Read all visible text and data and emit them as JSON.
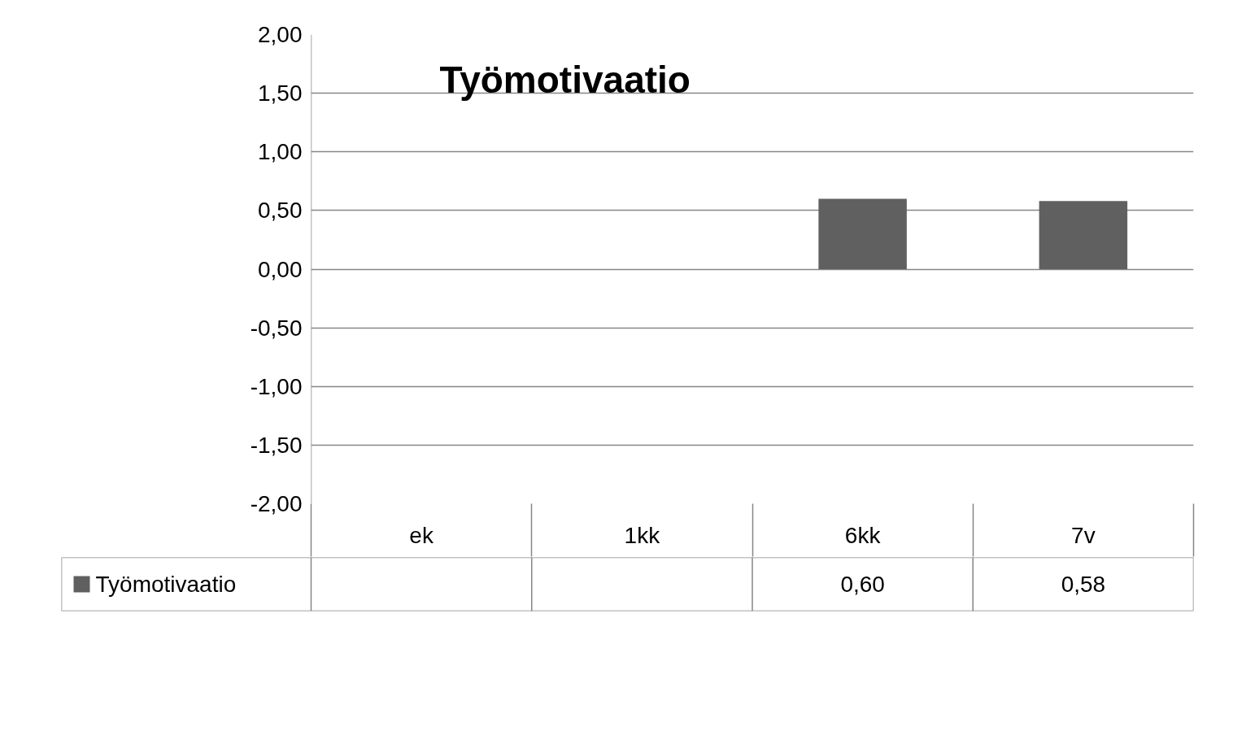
{
  "chart_data": {
    "type": "bar",
    "title": "Työmotivaatio",
    "categories": [
      "ek",
      "1kk",
      "6kk",
      "7v"
    ],
    "series": [
      {
        "name": "Työmotivaatio",
        "color": "#606060",
        "values": [
          null,
          null,
          0.6,
          0.58
        ],
        "value_labels": [
          null,
          null,
          "0,60",
          "0,58"
        ]
      }
    ],
    "ylim": [
      -2,
      2
    ],
    "yticks": [
      {
        "value": -2,
        "label": "-2,00"
      },
      {
        "value": -1.5,
        "label": "-1,50"
      },
      {
        "value": -1,
        "label": "-1,00"
      },
      {
        "value": -0.5,
        "label": "-0,50"
      },
      {
        "value": 0,
        "label": "0,00"
      },
      {
        "value": 0.5,
        "label": "0,50"
      },
      {
        "value": 1,
        "label": "1,00"
      },
      {
        "value": 1.5,
        "label": "1,50"
      },
      {
        "value": 2,
        "label": "2,00"
      }
    ],
    "grid": "y",
    "legend": "bottom"
  }
}
